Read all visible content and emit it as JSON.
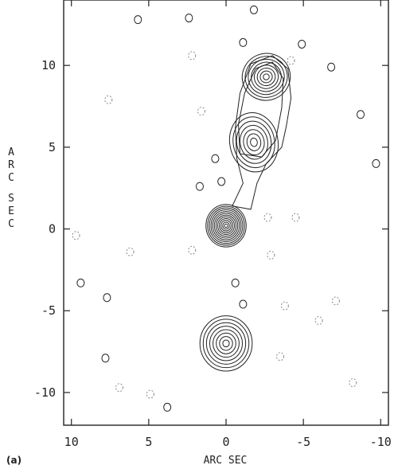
{
  "chart_data": {
    "type": "contour",
    "header": "",
    "panel_label": "(a)",
    "xlabel": "ARC SEC",
    "ylabel": "ARC SEC",
    "xlim": [
      10.5,
      -10.5
    ],
    "ylim": [
      -12,
      14
    ],
    "x_reversed": true,
    "x_ticks": [
      10,
      5,
      0,
      -5,
      -10
    ],
    "x_tick_labels": [
      "10",
      "5",
      "0",
      "-5",
      "-10"
    ],
    "y_ticks": [
      10,
      5,
      0,
      -5,
      -10
    ],
    "y_tick_labels": [
      "10",
      "5",
      "0",
      "-5",
      "-10"
    ],
    "grid": false,
    "components": [
      {
        "name": "core",
        "x": 0.0,
        "y": 0.2,
        "sx": 1.0,
        "sy": 1.0,
        "levels": 12,
        "rot": 0
      },
      {
        "name": "north-knot",
        "x": -1.8,
        "y": 5.3,
        "sx": 1.2,
        "sy": 1.4,
        "levels": 7,
        "rot": -10
      },
      {
        "name": "north-hotspot",
        "x": -2.6,
        "y": 9.3,
        "sx": 1.2,
        "sy": 1.1,
        "levels": 8,
        "rot": -20
      },
      {
        "name": "south-lobe",
        "x": 0.0,
        "y": -7.0,
        "sx": 1.3,
        "sy": 1.3,
        "levels": 8,
        "rot": 0
      }
    ],
    "noise_blobs": [
      {
        "x": 5.7,
        "y": 12.8,
        "dashed": false
      },
      {
        "x": 2.4,
        "y": 12.9,
        "dashed": false
      },
      {
        "x": -1.8,
        "y": 13.4,
        "dashed": false
      },
      {
        "x": -1.1,
        "y": 11.4,
        "dashed": false
      },
      {
        "x": -4.9,
        "y": 11.3,
        "dashed": false
      },
      {
        "x": 2.2,
        "y": 10.6,
        "dashed": true
      },
      {
        "x": -6.8,
        "y": 9.9,
        "dashed": false
      },
      {
        "x": -4.2,
        "y": 10.3,
        "dashed": true
      },
      {
        "x": 7.6,
        "y": 7.9,
        "dashed": true
      },
      {
        "x": 1.6,
        "y": 7.2,
        "dashed": true
      },
      {
        "x": -8.7,
        "y": 7.0,
        "dashed": false
      },
      {
        "x": 0.7,
        "y": 4.3,
        "dashed": false
      },
      {
        "x": -9.7,
        "y": 4.0,
        "dashed": false
      },
      {
        "x": 1.7,
        "y": 2.6,
        "dashed": false
      },
      {
        "x": 0.3,
        "y": 2.9,
        "dashed": false
      },
      {
        "x": -2.7,
        "y": 0.7,
        "dashed": true
      },
      {
        "x": -4.5,
        "y": 0.7,
        "dashed": true
      },
      {
        "x": 9.7,
        "y": -0.4,
        "dashed": true
      },
      {
        "x": 6.2,
        "y": -1.4,
        "dashed": true
      },
      {
        "x": 2.2,
        "y": -1.3,
        "dashed": true
      },
      {
        "x": -2.9,
        "y": -1.6,
        "dashed": true
      },
      {
        "x": 9.4,
        "y": -3.3,
        "dashed": false
      },
      {
        "x": 7.7,
        "y": -4.2,
        "dashed": false
      },
      {
        "x": -0.6,
        "y": -3.3,
        "dashed": false
      },
      {
        "x": -1.1,
        "y": -4.6,
        "dashed": false
      },
      {
        "x": -3.8,
        "y": -4.7,
        "dashed": true
      },
      {
        "x": -7.1,
        "y": -4.4,
        "dashed": true
      },
      {
        "x": -6.0,
        "y": -5.6,
        "dashed": true
      },
      {
        "x": -3.5,
        "y": -7.8,
        "dashed": true
      },
      {
        "x": 7.8,
        "y": -7.9,
        "dashed": false
      },
      {
        "x": 6.9,
        "y": -9.7,
        "dashed": true
      },
      {
        "x": 4.9,
        "y": -10.1,
        "dashed": true
      },
      {
        "x": 3.8,
        "y": -10.9,
        "dashed": false
      },
      {
        "x": -8.2,
        "y": -9.4,
        "dashed": true
      }
    ]
  }
}
